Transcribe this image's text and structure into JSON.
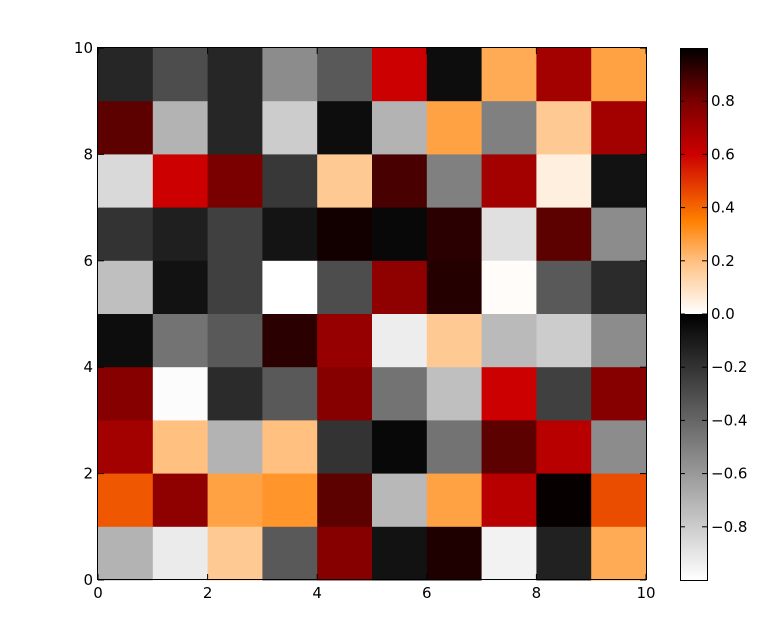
{
  "chart_data": {
    "type": "heatmap",
    "title": "",
    "xlabel": "",
    "ylabel": "",
    "xlim": [
      0,
      10
    ],
    "ylim": [
      0,
      10
    ],
    "x_ticks": [
      0,
      2,
      4,
      6,
      8,
      10
    ],
    "y_ticks": [
      0,
      2,
      4,
      6,
      8,
      10
    ],
    "grid": false,
    "colorbar": {
      "range": [
        -1,
        1
      ],
      "ticks": [
        -0.8,
        -0.6,
        -0.4,
        -0.2,
        0.0,
        0.2,
        0.4,
        0.6,
        0.8
      ],
      "tick_labels": [
        "−0.8",
        "−0.6",
        "−0.4",
        "−0.2",
        "0.0",
        "0.2",
        "0.4",
        "0.6",
        "0.8"
      ],
      "placement": "right",
      "colormap": "negative: white-to-black (gray); positive: white-orange-red-black (gist_heat reversed)"
    },
    "rows_top_to_bottom": [
      [
        -0.15,
        -0.3,
        -0.15,
        -0.55,
        -0.35,
        0.6,
        -0.05,
        0.25,
        0.7,
        0.27
      ],
      [
        0.85,
        -0.7,
        -0.15,
        -0.8,
        -0.05,
        -0.7,
        0.27,
        -0.5,
        0.17,
        0.7
      ],
      [
        -0.85,
        0.6,
        0.8,
        -0.22,
        0.17,
        0.88,
        -0.5,
        0.7,
        0.05,
        -0.07
      ],
      [
        -0.2,
        -0.12,
        -0.25,
        -0.08,
        0.97,
        -0.03,
        0.93,
        -0.88,
        0.85,
        -0.55
      ],
      [
        -0.75,
        -0.07,
        -0.25,
        -1.0,
        -0.3,
        0.75,
        0.94,
        0.01,
        -0.35,
        -0.17
      ],
      [
        -0.05,
        -0.45,
        -0.35,
        0.93,
        0.73,
        -0.93,
        0.17,
        -0.73,
        -0.8,
        -0.55
      ],
      [
        0.77,
        -0.99,
        -0.17,
        -0.35,
        0.77,
        -0.45,
        -0.75,
        0.6,
        -0.25,
        0.77
      ],
      [
        0.7,
        0.2,
        -0.7,
        0.2,
        -0.2,
        -0.03,
        -0.45,
        0.85,
        0.65,
        -0.55
      ],
      [
        0.43,
        0.75,
        0.27,
        0.3,
        0.85,
        -0.72,
        0.27,
        0.65,
        0.99,
        0.45
      ],
      [
        -0.7,
        -0.92,
        0.17,
        -0.35,
        0.77,
        -0.07,
        0.95,
        -0.95,
        -0.13,
        0.25
      ]
    ]
  }
}
